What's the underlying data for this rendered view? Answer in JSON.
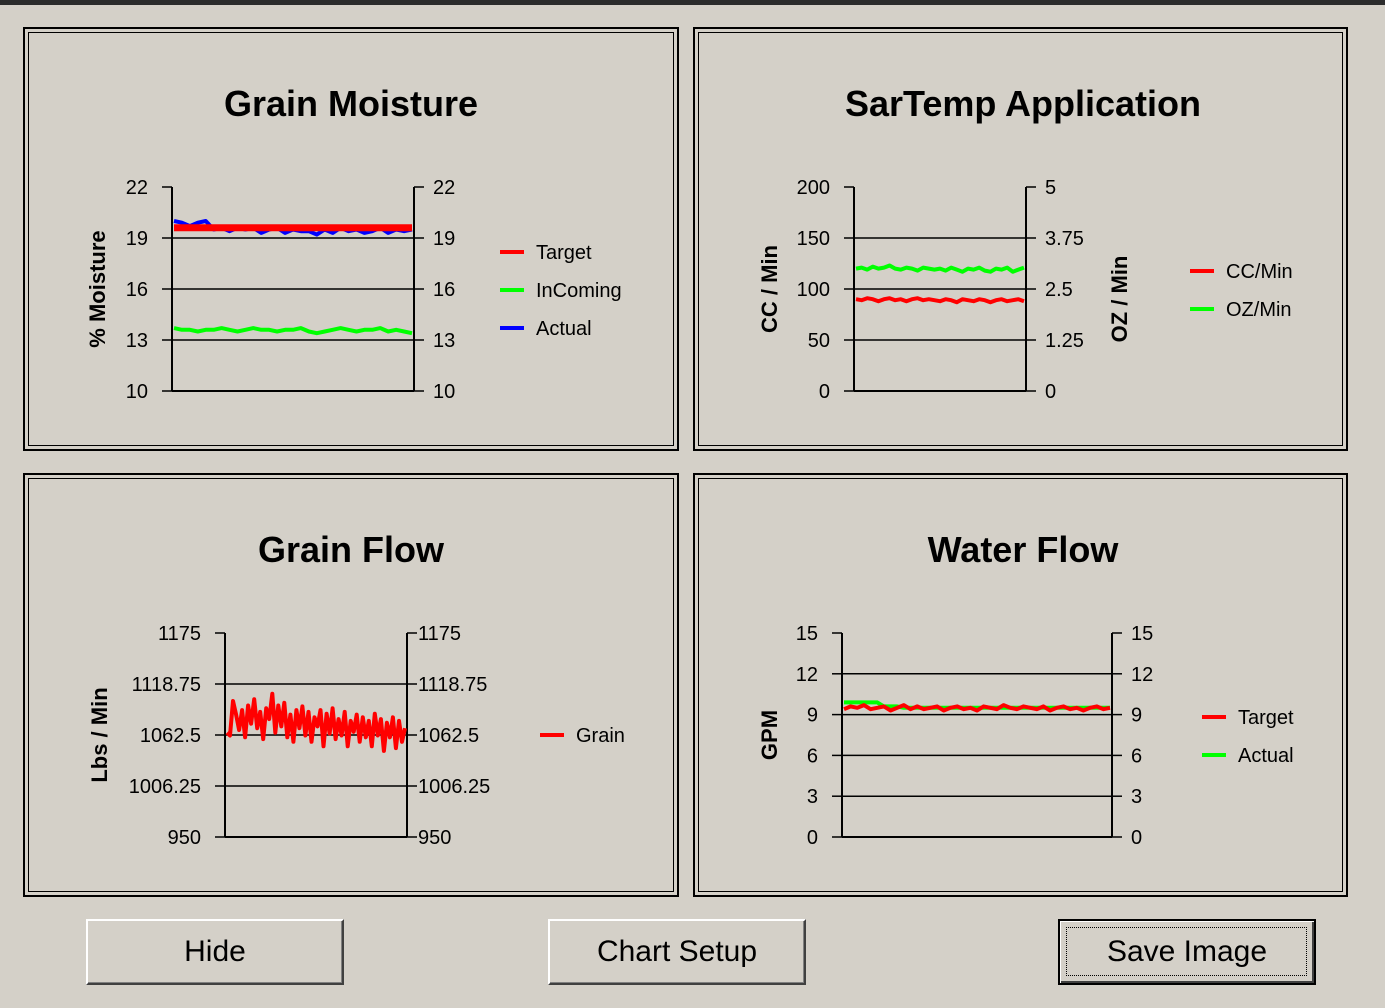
{
  "colors": {
    "red": "#ff0000",
    "green": "#00ff00",
    "blue": "#0000ff"
  },
  "buttons": {
    "hide": "Hide",
    "chart_setup": "Chart Setup",
    "save_image": "Save Image"
  },
  "chart_data": [
    {
      "type": "line",
      "title": "Grain Moisture",
      "ylabel": "% Moisture",
      "ylabel_right": "",
      "ylim": [
        10,
        22
      ],
      "yticks": [
        "22",
        "19",
        "16",
        "13",
        "10"
      ],
      "yticks_right": [
        "22",
        "19",
        "16",
        "13",
        "10"
      ],
      "grid": true,
      "legend": "right",
      "series": [
        {
          "name": "Target",
          "color": "#ff0000",
          "values": [
            19.6,
            19.6,
            19.6,
            19.6,
            19.6,
            19.6,
            19.6,
            19.6,
            19.6,
            19.6,
            19.6,
            19.6,
            19.6,
            19.6,
            19.6,
            19.6,
            19.6,
            19.6,
            19.6,
            19.6,
            19.6,
            19.6,
            19.6,
            19.6,
            19.6,
            19.6,
            19.6,
            19.6,
            19.6,
            19.6,
            19.6
          ]
        },
        {
          "name": "InComing",
          "color": "#00ff00",
          "values": [
            13.7,
            13.6,
            13.6,
            13.5,
            13.6,
            13.6,
            13.7,
            13.6,
            13.5,
            13.6,
            13.7,
            13.6,
            13.6,
            13.5,
            13.6,
            13.6,
            13.7,
            13.5,
            13.4,
            13.5,
            13.6,
            13.7,
            13.6,
            13.5,
            13.6,
            13.6,
            13.7,
            13.5,
            13.6,
            13.5,
            13.4
          ]
        },
        {
          "name": "Actual",
          "color": "#0000ff",
          "values": [
            20.0,
            19.9,
            19.7,
            19.9,
            20.0,
            19.5,
            19.6,
            19.4,
            19.6,
            19.5,
            19.6,
            19.3,
            19.5,
            19.6,
            19.3,
            19.5,
            19.4,
            19.4,
            19.2,
            19.5,
            19.3,
            19.6,
            19.4,
            19.5,
            19.3,
            19.4,
            19.6,
            19.3,
            19.5,
            19.4,
            19.5
          ]
        }
      ]
    },
    {
      "type": "line",
      "title": "SarTemp Application",
      "ylabel": "CC / Min",
      "ylabel_right": "OZ / Min",
      "ylim": [
        0,
        200
      ],
      "ylim_right": [
        0,
        5
      ],
      "yticks": [
        "200",
        "150",
        "100",
        "50",
        "0"
      ],
      "yticks_right": [
        "5",
        "3.75",
        "2.5",
        "1.25",
        "0"
      ],
      "grid": true,
      "legend": "right",
      "series": [
        {
          "name": "CC/Min",
          "color": "#ff0000",
          "values": [
            90,
            89,
            91,
            90,
            88,
            90,
            91,
            89,
            90,
            88,
            90,
            91,
            89,
            90,
            89,
            88,
            90,
            89,
            87,
            90,
            89,
            88,
            90,
            89,
            87,
            89,
            90,
            88,
            89,
            90,
            88
          ]
        },
        {
          "name": "OZ/Min",
          "color": "#00ff00",
          "values": [
            120,
            121,
            119,
            122,
            120,
            121,
            123,
            120,
            119,
            121,
            120,
            118,
            121,
            120,
            119,
            120,
            118,
            121,
            119,
            117,
            120,
            119,
            121,
            118,
            117,
            120,
            119,
            121,
            117,
            119,
            121
          ]
        }
      ]
    },
    {
      "type": "line",
      "title": "Grain Flow",
      "ylabel": "Lbs / Min",
      "ylabel_right": "",
      "ylim": [
        950,
        1175
      ],
      "yticks": [
        "1175",
        "1118.75",
        "1062.5",
        "1006.25",
        "950"
      ],
      "yticks_right": [
        "1175",
        "1118.75",
        "1062.5",
        "1006.25",
        "950"
      ],
      "grid": true,
      "legend": "right",
      "series": [
        {
          "name": "Grain",
          "color": "#ff0000",
          "values": [
            1065,
            1062,
            1100,
            1085,
            1068,
            1090,
            1060,
            1095,
            1075,
            1102,
            1070,
            1088,
            1058,
            1092,
            1080,
            1108,
            1065,
            1095,
            1072,
            1098,
            1060,
            1085,
            1055,
            1090,
            1070,
            1094,
            1062,
            1088,
            1055,
            1082,
            1072,
            1090,
            1050,
            1086,
            1064,
            1092,
            1058,
            1080,
            1062,
            1088,
            1050,
            1078,
            1066,
            1085,
            1055,
            1082,
            1060,
            1078,
            1050,
            1086,
            1062,
            1080,
            1045,
            1076,
            1060,
            1082,
            1048,
            1078,
            1055,
            1070
          ]
        }
      ]
    },
    {
      "type": "line",
      "title": "Water Flow",
      "ylabel": "GPM",
      "ylabel_right": "",
      "ylim": [
        0,
        15
      ],
      "yticks": [
        "15",
        "12",
        "9",
        "6",
        "3",
        "0"
      ],
      "yticks_right": [
        "15",
        "12",
        "9",
        "6",
        "3",
        "0"
      ],
      "grid": true,
      "legend": "right",
      "series": [
        {
          "name": "Target",
          "color": "#ff0000",
          "values": [
            9.4,
            9.6,
            9.5,
            9.7,
            9.4,
            9.5,
            9.6,
            9.3,
            9.5,
            9.7,
            9.4,
            9.6,
            9.4,
            9.5,
            9.6,
            9.3,
            9.5,
            9.6,
            9.4,
            9.5,
            9.3,
            9.6,
            9.5,
            9.4,
            9.7,
            9.5,
            9.4,
            9.6,
            9.5,
            9.4,
            9.6,
            9.3,
            9.5,
            9.6,
            9.4,
            9.5,
            9.3,
            9.5,
            9.6,
            9.4,
            9.5
          ]
        },
        {
          "name": "Actual",
          "color": "#00ff00",
          "values": [
            9.9,
            9.9,
            9.9,
            9.9,
            9.9,
            9.9,
            9.6,
            9.6,
            9.6,
            9.5,
            9.5,
            9.5,
            9.5,
            9.5,
            9.5,
            9.5,
            9.5,
            9.5,
            9.5,
            9.5,
            9.5,
            9.5,
            9.5,
            9.5,
            9.5,
            9.5,
            9.5,
            9.5,
            9.5,
            9.5,
            9.5,
            9.5,
            9.5,
            9.5,
            9.5,
            9.5,
            9.5,
            9.5,
            9.5,
            9.5,
            9.5
          ]
        }
      ]
    }
  ]
}
